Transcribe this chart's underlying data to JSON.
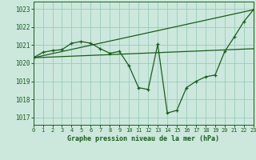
{
  "title": "Graphe pression niveau de la mer (hPa)",
  "bg_color": "#cce8dd",
  "grid_color": "#99ccbb",
  "line_color": "#1a5c1a",
  "xlim": [
    0,
    23
  ],
  "ylim": [
    1016.6,
    1023.4
  ],
  "yticks": [
    1017,
    1018,
    1019,
    1020,
    1021,
    1022,
    1023
  ],
  "xticks": [
    0,
    1,
    2,
    3,
    4,
    5,
    6,
    7,
    8,
    9,
    10,
    11,
    12,
    13,
    14,
    15,
    16,
    17,
    18,
    19,
    20,
    21,
    22,
    23
  ],
  "line_main": {
    "x": [
      0,
      1,
      2,
      3,
      4,
      5,
      6,
      7,
      8,
      9,
      10,
      11,
      12,
      13,
      14,
      15,
      16,
      17,
      18,
      19,
      20,
      21,
      22,
      23
    ],
    "y": [
      1020.3,
      1020.6,
      1020.7,
      1020.75,
      1021.1,
      1021.2,
      1021.1,
      1020.8,
      1020.55,
      1020.65,
      1019.85,
      1018.65,
      1018.55,
      1021.05,
      1017.25,
      1017.4,
      1018.65,
      1019.0,
      1019.25,
      1019.35,
      1020.65,
      1021.45,
      1022.3,
      1022.95
    ]
  },
  "line_flat": {
    "x": [
      0,
      23
    ],
    "y": [
      1020.3,
      1020.8
    ]
  },
  "line_diag": {
    "x": [
      0,
      23
    ],
    "y": [
      1020.3,
      1022.95
    ]
  }
}
